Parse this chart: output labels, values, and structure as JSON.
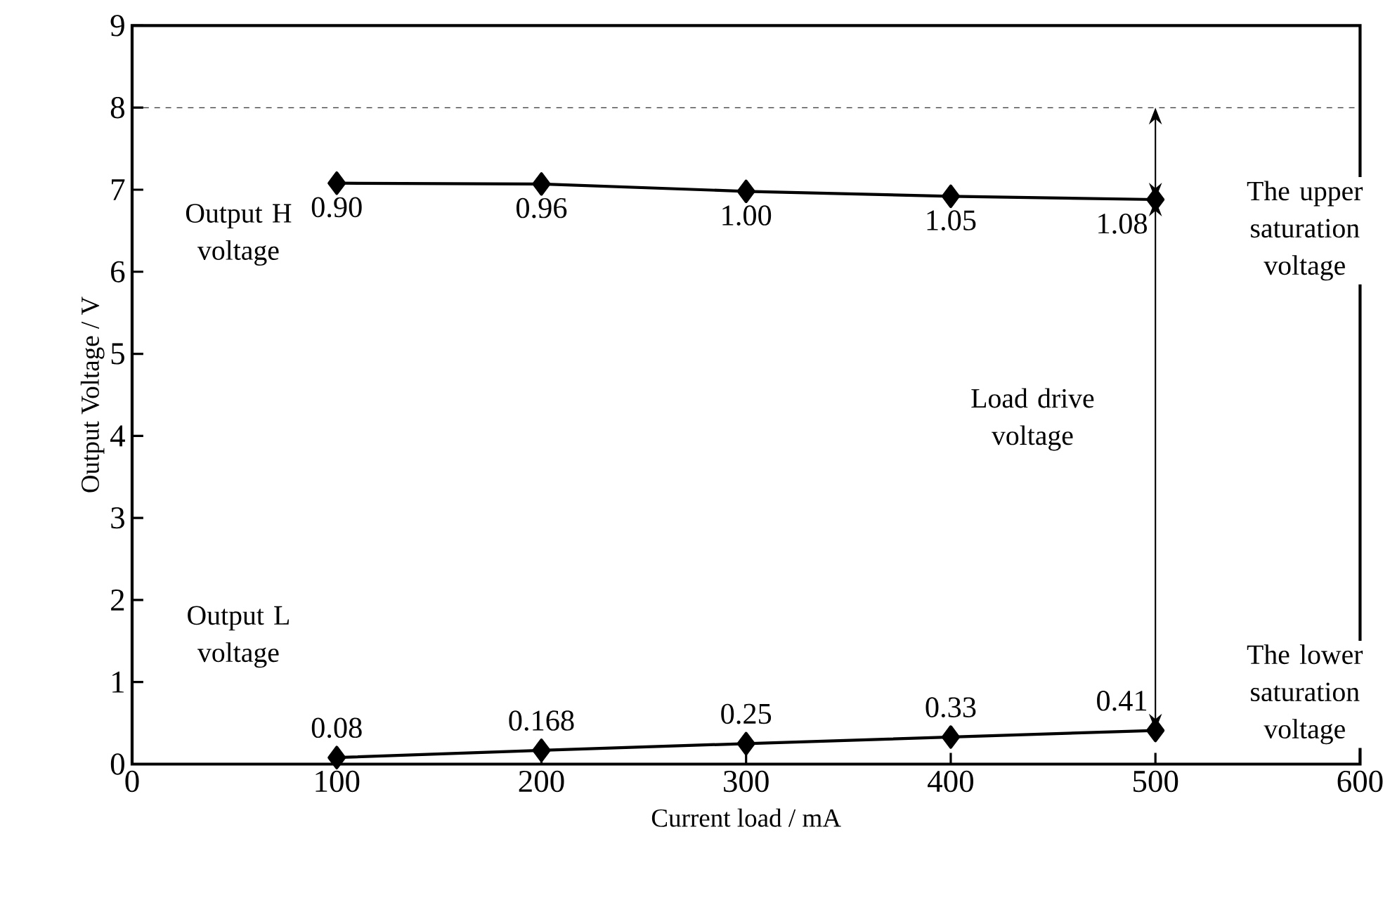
{
  "chart_data": {
    "type": "line",
    "xlabel": "Current load  /  mA",
    "ylabel": "Output Voltage  /  V",
    "x": [
      100,
      200,
      300,
      400,
      500
    ],
    "series": [
      {
        "color": "#000000",
        "values": [
          7.08,
          7.07,
          6.98,
          6.92,
          6.88
        ]
      },
      {
        "color": "#000000",
        "values": [
          0.08,
          0.168,
          0.25,
          0.33,
          0.41
        ],
        "value_labels": [
          "0.08",
          "0.168",
          "0.25",
          "0.33",
          "0.41"
        ]
      }
    ],
    "xlim": [
      0,
      600
    ],
    "ylim": [
      0,
      9
    ],
    "xticks": [
      0,
      100,
      200,
      300,
      400,
      500,
      600
    ],
    "yticks": [
      0,
      1,
      2,
      3,
      4,
      5,
      6,
      7,
      8,
      9
    ],
    "marker": "diamond",
    "line_style": "solid",
    "ref_lines": [
      {
        "axis": "y",
        "value": 8,
        "line_style": "dashed"
      }
    ],
    "annotations": [
      "Output H voltage",
      "Output L voltage",
      "The upper saturation voltage",
      "Load drive voltage",
      "The lower saturation voltage",
      {
        "text": "0.90",
        "x": 100,
        "y": 7.08
      },
      {
        "text": "0.96",
        "x": 200,
        "y": 7.07
      },
      {
        "text": "1.00",
        "x": 300,
        "y": 6.98
      },
      {
        "text": "1.05",
        "x": 400,
        "y": 6.92
      },
      {
        "text": "1.08",
        "x": 500,
        "y": 6.88
      }
    ]
  }
}
